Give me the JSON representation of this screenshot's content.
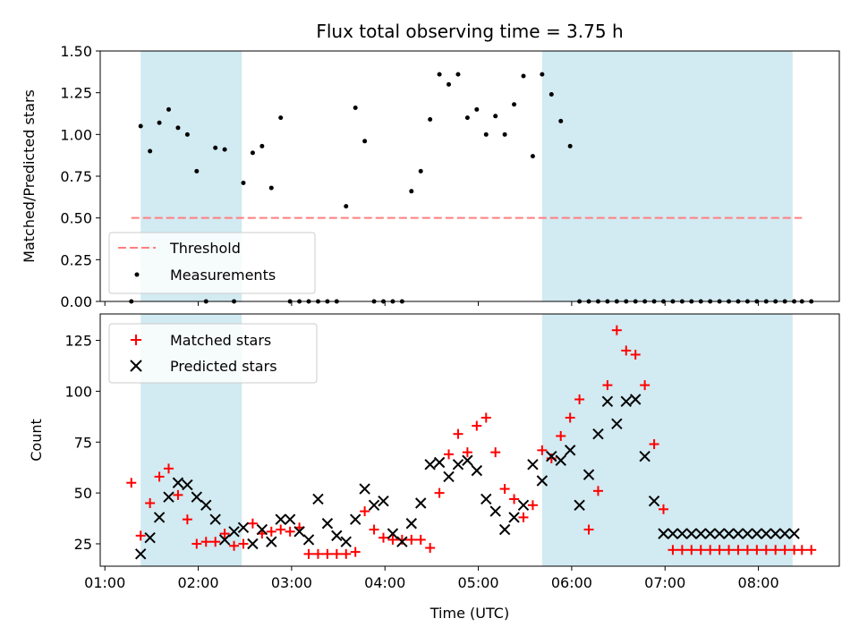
{
  "chart_data": [
    {
      "type": "scatter",
      "title": "Flux total observing time = 3.75 h",
      "xlabel": "",
      "ylabel": "Matched/Predicted stars",
      "xlim": [
        "00:57",
        "08:52"
      ],
      "ylim": [
        0,
        1.5
      ],
      "yticks": [
        "0.00",
        "0.25",
        "0.50",
        "0.75",
        "1.00",
        "1.25",
        "1.50"
      ],
      "shaded_intervals": [
        [
          "01:23",
          "02:28"
        ],
        [
          "05:41",
          "08:22"
        ]
      ],
      "shade_color": "#add8e6",
      "threshold": {
        "name": "Threshold",
        "y": 0.5,
        "x_range": [
          "01:17",
          "08:28"
        ],
        "color": "#ff7f7f"
      },
      "series": [
        {
          "name": "Measurements",
          "marker": "dot",
          "color": "#000000",
          "x": [
            "01:17",
            "01:23",
            "01:29",
            "01:35",
            "01:41",
            "01:47",
            "01:53",
            "01:59",
            "02:05",
            "02:11",
            "02:17",
            "02:23",
            "02:29",
            "02:35",
            "02:41",
            "02:47",
            "02:53",
            "02:59",
            "03:05",
            "03:11",
            "03:17",
            "03:23",
            "03:29",
            "03:35",
            "03:41",
            "03:47",
            "03:53",
            "03:59",
            "04:05",
            "04:11",
            "04:17",
            "04:23",
            "04:29",
            "04:35",
            "04:41",
            "04:47",
            "04:53",
            "04:59",
            "05:05",
            "05:11",
            "05:17",
            "05:23",
            "05:29",
            "05:35",
            "05:41",
            "05:47",
            "05:53",
            "05:59",
            "06:05",
            "06:11",
            "06:17",
            "06:23",
            "06:29",
            "06:35",
            "06:41",
            "06:47",
            "06:53",
            "06:59",
            "07:05",
            "07:11",
            "07:17",
            "07:23",
            "07:29",
            "07:35",
            "07:41",
            "07:47",
            "07:53",
            "07:59",
            "08:05",
            "08:11",
            "08:17",
            "08:23",
            "08:28",
            "08:34"
          ],
          "y": [
            0,
            1.05,
            0.9,
            1.07,
            1.15,
            1.04,
            1.0,
            0.78,
            0,
            0.92,
            0.91,
            0,
            0.71,
            0.89,
            0.93,
            0.68,
            1.1,
            0,
            0,
            0,
            0,
            0,
            0,
            0.57,
            1.16,
            0.96,
            0,
            0,
            0,
            0,
            0.66,
            0.78,
            1.09,
            1.36,
            1.3,
            1.36,
            1.1,
            1.15,
            1.0,
            1.11,
            1.0,
            1.18,
            1.35,
            0.87,
            1.36,
            1.24,
            1.08,
            0.93,
            0,
            0,
            0,
            0,
            0,
            0,
            0,
            0,
            0,
            0,
            0,
            0,
            0,
            0,
            0,
            0,
            0,
            0,
            0,
            0,
            0,
            0,
            0,
            0,
            0,
            0
          ]
        }
      ],
      "legend": {
        "position": "lower-left"
      }
    },
    {
      "type": "scatter",
      "title": "",
      "xlabel": "Time (UTC)",
      "ylabel": "Count",
      "xlim": [
        "00:57",
        "08:52"
      ],
      "ylim": [
        14,
        138
      ],
      "yticks": [
        "25",
        "50",
        "75",
        "100",
        "125"
      ],
      "xticks": [
        "01:00",
        "02:00",
        "03:00",
        "04:00",
        "05:00",
        "06:00",
        "07:00",
        "08:00"
      ],
      "shaded_intervals": [
        [
          "01:23",
          "02:28"
        ],
        [
          "05:41",
          "08:22"
        ]
      ],
      "shade_color": "#add8e6",
      "series": [
        {
          "name": "Matched stars",
          "marker": "plus",
          "color": "#ff0000",
          "x": [
            "01:17",
            "01:23",
            "01:29",
            "01:35",
            "01:41",
            "01:47",
            "01:53",
            "01:59",
            "02:05",
            "02:11",
            "02:17",
            "02:23",
            "02:29",
            "02:35",
            "02:41",
            "02:47",
            "02:53",
            "02:59",
            "03:05",
            "03:11",
            "03:17",
            "03:23",
            "03:29",
            "03:35",
            "03:41",
            "03:47",
            "03:53",
            "03:59",
            "04:05",
            "04:11",
            "04:17",
            "04:23",
            "04:29",
            "04:35",
            "04:41",
            "04:47",
            "04:53",
            "04:59",
            "05:05",
            "05:11",
            "05:17",
            "05:23",
            "05:29",
            "05:35",
            "05:41",
            "05:47",
            "05:53",
            "05:59",
            "06:05",
            "06:11",
            "06:17",
            "06:23",
            "06:29",
            "06:35",
            "06:41",
            "06:47",
            "06:53",
            "06:59",
            "07:05",
            "07:11",
            "07:17",
            "07:23",
            "07:29",
            "07:35",
            "07:41",
            "07:47",
            "07:53",
            "07:59",
            "08:05",
            "08:11",
            "08:17",
            "08:23",
            "08:28",
            "08:34"
          ],
          "y": [
            55,
            29,
            45,
            58,
            62,
            49,
            37,
            25,
            26,
            26,
            30,
            24,
            25,
            35,
            30,
            31,
            32,
            31,
            33,
            20,
            20,
            20,
            20,
            20,
            21,
            41,
            32,
            28,
            27,
            27,
            27,
            27,
            23,
            50,
            69,
            79,
            70,
            83,
            87,
            70,
            52,
            47,
            38,
            44,
            71,
            67,
            78,
            87,
            96,
            32,
            51,
            103,
            130,
            120,
            118,
            103,
            74,
            42,
            22,
            22,
            22,
            22,
            22,
            22,
            22,
            22,
            22,
            22,
            22,
            22,
            22,
            22,
            22,
            22
          ]
        },
        {
          "name": "Predicted stars",
          "marker": "x",
          "color": "#000000",
          "x": [
            "01:23",
            "01:29",
            "01:35",
            "01:41",
            "01:47",
            "01:53",
            "01:59",
            "02:05",
            "02:11",
            "02:17",
            "02:23",
            "02:29",
            "02:35",
            "02:41",
            "02:47",
            "02:53",
            "02:59",
            "03:05",
            "03:11",
            "03:17",
            "03:23",
            "03:29",
            "03:35",
            "03:41",
            "03:47",
            "03:53",
            "03:59",
            "04:05",
            "04:11",
            "04:17",
            "04:23",
            "04:29",
            "04:35",
            "04:41",
            "04:47",
            "04:53",
            "04:59",
            "05:05",
            "05:11",
            "05:17",
            "05:23",
            "05:29",
            "05:35",
            "05:41",
            "05:47",
            "05:53",
            "05:59",
            "06:05",
            "06:11",
            "06:17",
            "06:23",
            "06:29",
            "06:35",
            "06:41",
            "06:47",
            "06:53",
            "06:59",
            "07:05",
            "07:11",
            "07:17",
            "07:23",
            "07:29",
            "07:35",
            "07:41",
            "07:47",
            "07:53",
            "07:59",
            "08:05",
            "08:11",
            "08:17",
            "08:23"
          ],
          "y": [
            20,
            28,
            38,
            48,
            55,
            54,
            48,
            44,
            37,
            27,
            31,
            33,
            25,
            32,
            26,
            37,
            37,
            31,
            27,
            47,
            35,
            29,
            26,
            37,
            52,
            44,
            46,
            30,
            26,
            35,
            45,
            64,
            65,
            58,
            64,
            66,
            61,
            47,
            41,
            32,
            38,
            44,
            64,
            56,
            68,
            66,
            71,
            44,
            59,
            79,
            95,
            84,
            95,
            96,
            68,
            46,
            30,
            30,
            30,
            30,
            30,
            30,
            30,
            30,
            30,
            30,
            30,
            30,
            30,
            30,
            30
          ]
        }
      ],
      "legend": {
        "position": "upper-left"
      }
    }
  ]
}
